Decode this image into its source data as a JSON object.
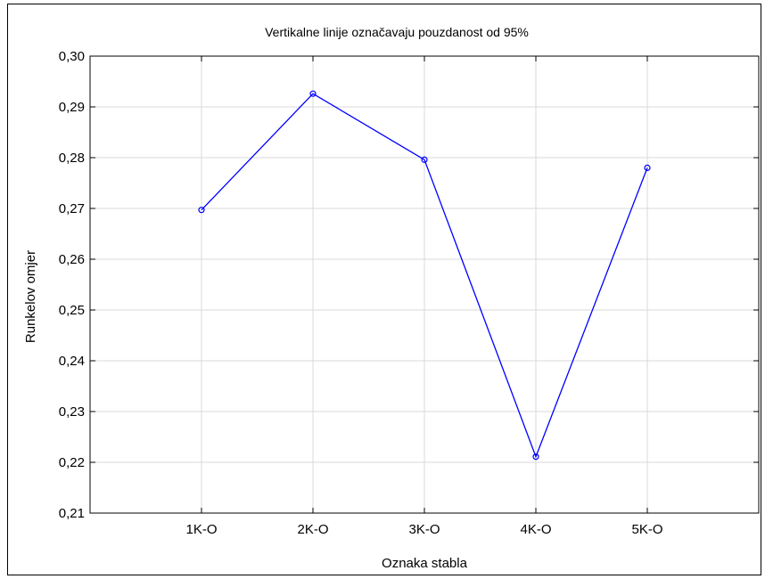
{
  "chart_data": {
    "type": "line",
    "title": "Vertikalne linije označavaju pouzdanost od 95%",
    "xlabel": "Oznaka stabla",
    "ylabel": "Runkelov omjer",
    "categories": [
      "1K-O",
      "2K-O",
      "3K-O",
      "4K-O",
      "5K-O"
    ],
    "series": [
      {
        "values": [
          0.2697,
          0.2926,
          0.2796,
          0.2211,
          0.278
        ],
        "color": "#0000ff"
      }
    ],
    "ylim": [
      0.21,
      0.3
    ],
    "yticks": [
      "0,21",
      "0,22",
      "0,23",
      "0,24",
      "0,25",
      "0,26",
      "0,27",
      "0,28",
      "0,29",
      "0,30"
    ],
    "grid": true,
    "legend": "none",
    "marker": "circle"
  }
}
